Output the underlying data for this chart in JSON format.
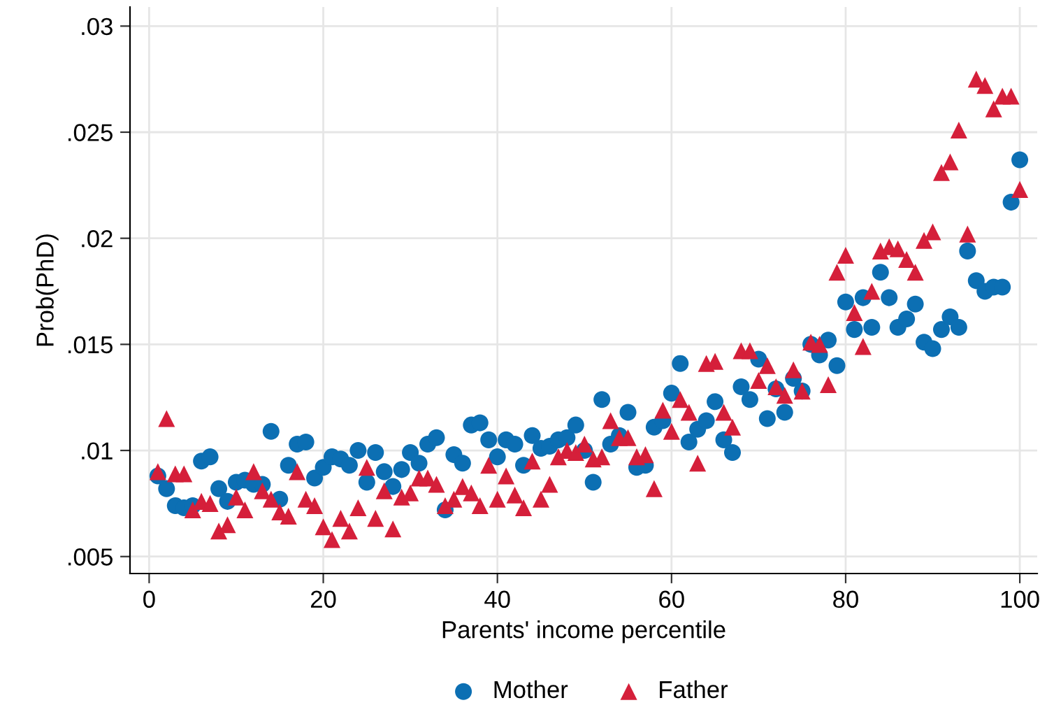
{
  "chart_data": {
    "type": "scatter",
    "xlabel": "Parents' income percentile",
    "ylabel": "Prob(PhD)",
    "x": [
      1,
      2,
      3,
      4,
      5,
      6,
      7,
      8,
      9,
      10,
      11,
      12,
      13,
      14,
      15,
      16,
      17,
      18,
      19,
      20,
      21,
      22,
      23,
      24,
      25,
      26,
      27,
      28,
      29,
      30,
      31,
      32,
      33,
      34,
      35,
      36,
      37,
      38,
      39,
      40,
      41,
      42,
      43,
      44,
      45,
      46,
      47,
      48,
      49,
      50,
      51,
      52,
      53,
      54,
      55,
      56,
      57,
      58,
      59,
      60,
      61,
      62,
      63,
      64,
      65,
      66,
      67,
      68,
      69,
      70,
      71,
      72,
      73,
      74,
      75,
      76,
      77,
      78,
      79,
      80,
      81,
      82,
      83,
      84,
      85,
      86,
      87,
      88,
      89,
      90,
      91,
      92,
      93,
      94,
      95,
      96,
      97,
      98,
      99,
      100
    ],
    "series": [
      {
        "name": "Mother",
        "color": "#0c6fb3",
        "marker": "circle",
        "values": [
          0.0088,
          0.0082,
          0.0074,
          0.0073,
          0.0074,
          0.0095,
          0.0097,
          0.0082,
          0.0076,
          0.0085,
          0.0086,
          0.0084,
          0.0084,
          0.0109,
          0.0077,
          0.0093,
          0.0103,
          0.0104,
          0.0087,
          0.0092,
          0.0097,
          0.0096,
          0.0093,
          0.01,
          0.0085,
          0.0099,
          0.009,
          0.0083,
          0.0091,
          0.0099,
          0.0094,
          0.0103,
          0.0106,
          0.0072,
          0.0098,
          0.0094,
          0.0112,
          0.0113,
          0.0105,
          0.0097,
          0.0105,
          0.0103,
          0.0093,
          0.0107,
          0.0101,
          0.0102,
          0.0105,
          0.0106,
          0.0112,
          0.01,
          0.0085,
          0.0124,
          0.0103,
          0.0107,
          0.0118,
          0.0092,
          0.0093,
          0.0111,
          0.0114,
          0.0127,
          0.0141,
          0.0104,
          0.011,
          0.0114,
          0.0123,
          0.0105,
          0.0099,
          0.013,
          0.0124,
          0.0143,
          0.0115,
          0.0129,
          0.0118,
          0.0134,
          0.0128,
          0.015,
          0.0145,
          0.0152,
          0.014,
          0.017,
          0.0157,
          0.0172,
          0.0158,
          0.0184,
          0.0172,
          0.0158,
          0.0162,
          0.0169,
          0.0151,
          0.0148,
          0.0157,
          0.0163,
          0.0158,
          0.0194,
          0.018,
          0.0175,
          0.0177,
          0.0177,
          0.0217,
          0.0237
        ]
      },
      {
        "name": "Father",
        "color": "#d51f3a",
        "marker": "triangle",
        "values": [
          0.009,
          0.0115,
          0.0089,
          0.0089,
          0.0072,
          0.0076,
          0.0075,
          0.0062,
          0.0065,
          0.0078,
          0.0072,
          0.009,
          0.0081,
          0.0077,
          0.0071,
          0.0069,
          0.009,
          0.0077,
          0.0074,
          0.0064,
          0.0058,
          0.0068,
          0.0062,
          0.0073,
          0.0092,
          0.0068,
          0.0081,
          0.0063,
          0.0078,
          0.008,
          0.0087,
          0.0087,
          0.0084,
          0.0074,
          0.0077,
          0.0083,
          0.008,
          0.0074,
          0.0093,
          0.0077,
          0.0088,
          0.0079,
          0.0073,
          0.0095,
          0.0077,
          0.0084,
          0.0097,
          0.01,
          0.0099,
          0.0103,
          0.0096,
          0.0097,
          0.0114,
          0.0106,
          0.0106,
          0.0097,
          0.0098,
          0.0082,
          0.0119,
          0.0109,
          0.0124,
          0.0118,
          0.0094,
          0.0141,
          0.0142,
          0.0118,
          0.0111,
          0.0147,
          0.0147,
          0.0133,
          0.014,
          0.013,
          0.0126,
          0.0138,
          0.0128,
          0.0151,
          0.015,
          0.0131,
          0.0184,
          0.0192,
          0.0165,
          0.0149,
          0.0175,
          0.0194,
          0.0196,
          0.0195,
          0.019,
          0.0184,
          0.0199,
          0.0203,
          0.0231,
          0.0236,
          0.0251,
          0.0202,
          0.0275,
          0.0272,
          0.0261,
          0.0267,
          0.0267,
          0.0223
        ]
      }
    ],
    "xlim": [
      -2.2,
      102
    ],
    "xticks": [
      0,
      20,
      40,
      60,
      80,
      100
    ],
    "ylim": [
      0.0042,
      0.0309
    ],
    "yticks": [
      {
        "value": 0.005,
        "label": ".005"
      },
      {
        "value": 0.01,
        "label": ".01"
      },
      {
        "value": 0.015,
        "label": ".015"
      },
      {
        "value": 0.02,
        "label": ".02"
      },
      {
        "value": 0.025,
        "label": ".025"
      },
      {
        "value": 0.03,
        "label": ".03"
      }
    ],
    "grid": true,
    "legend": "bottom"
  }
}
